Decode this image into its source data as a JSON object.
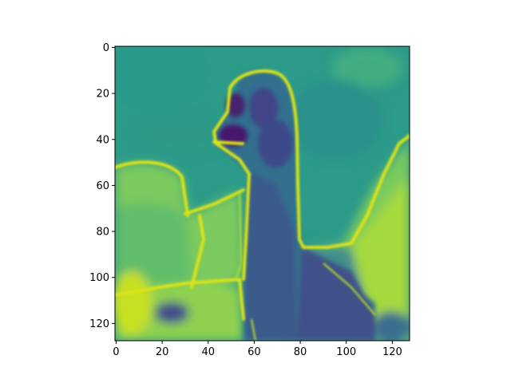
{
  "chart_data": {
    "type": "heatmap",
    "title": "",
    "xlabel": "",
    "ylabel": "",
    "colormap": "viridis",
    "image_shape": [
      128,
      128
    ],
    "xlim": [
      -0.5,
      127.5
    ],
    "ylim": [
      127.5,
      -0.5
    ],
    "y_axis_inverted": true,
    "x_ticks": [
      0,
      20,
      40,
      60,
      80,
      100,
      120
    ],
    "y_ticks": [
      0,
      20,
      40,
      60,
      80,
      100,
      120
    ],
    "grid": false,
    "colorbar": false,
    "content": "grayscale photo rendered in viridis: bird with long neck facing left, outlined by bright edges",
    "colors": {
      "background_mid": "#2a9d8a",
      "edge_highlight": "#e3e418",
      "dark_region": "#46246d"
    }
  }
}
